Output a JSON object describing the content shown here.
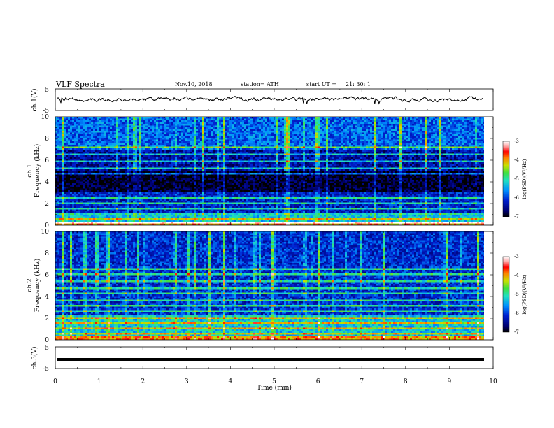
{
  "header": {
    "title": "VLF  Spectra",
    "date": "Nov.10, 2018",
    "station": "station= ATH",
    "start_label": "start  UT  =",
    "start_time": "21: 30: 1"
  },
  "chart_data": [
    {
      "id": "ch1-waveform",
      "type": "line",
      "ylabel": "ch.1(V)",
      "ylim": [
        -5,
        5
      ],
      "yticks": [
        "5",
        "-5"
      ],
      "xlim": [
        0,
        10
      ],
      "series": [
        {
          "color": "#000000"
        }
      ]
    },
    {
      "id": "ch1-spectrogram",
      "type": "heatmap",
      "ylabel_top": "ch.1",
      "ylabel": "Frequency  (kHz)",
      "ylim": [
        0,
        10
      ],
      "yticks": [
        "10",
        "8",
        "6",
        "4",
        "2",
        "0"
      ],
      "xlim": [
        0,
        10
      ],
      "colorbar": {
        "label": "log(PSD)(V²/Hz)",
        "range": [
          -7,
          -3
        ],
        "ticks": [
          "-3",
          "-4",
          "-5",
          "-6",
          "-7"
        ]
      }
    },
    {
      "id": "ch2-spectrogram",
      "type": "heatmap",
      "ylabel_top": "ch.2",
      "ylabel": "Frequency  (kHz)",
      "ylim": [
        0,
        10
      ],
      "yticks": [
        "10",
        "8",
        "6",
        "4",
        "2",
        "0"
      ],
      "xlim": [
        0,
        10
      ],
      "colorbar": {
        "label": "log(PSD)(V²/Hz)",
        "range": [
          -7,
          -3
        ],
        "ticks": [
          "-3",
          "-4",
          "-5",
          "-6",
          "-7"
        ]
      }
    },
    {
      "id": "ch3-waveform",
      "type": "line",
      "ylabel": "ch.3(V)",
      "ylim": [
        -5,
        5
      ],
      "yticks": [
        "5",
        "-5"
      ],
      "xlim": [
        0,
        10
      ],
      "xlabel": "Time  (min)",
      "xticks": [
        "0",
        "1",
        "2",
        "3",
        "4",
        "5",
        "6",
        "7",
        "8",
        "9",
        "10"
      ],
      "series": [
        {
          "color": "#000000",
          "constant_value": -0.8
        }
      ]
    }
  ],
  "colors": {
    "colormap": [
      "#000000",
      "#000060",
      "#0010b0",
      "#1040e0",
      "#20a0e0",
      "#20e0a0",
      "#40e040",
      "#c0e000",
      "#ff8000",
      "#ff0000",
      "#ffb0b0",
      "#ffffff"
    ]
  }
}
